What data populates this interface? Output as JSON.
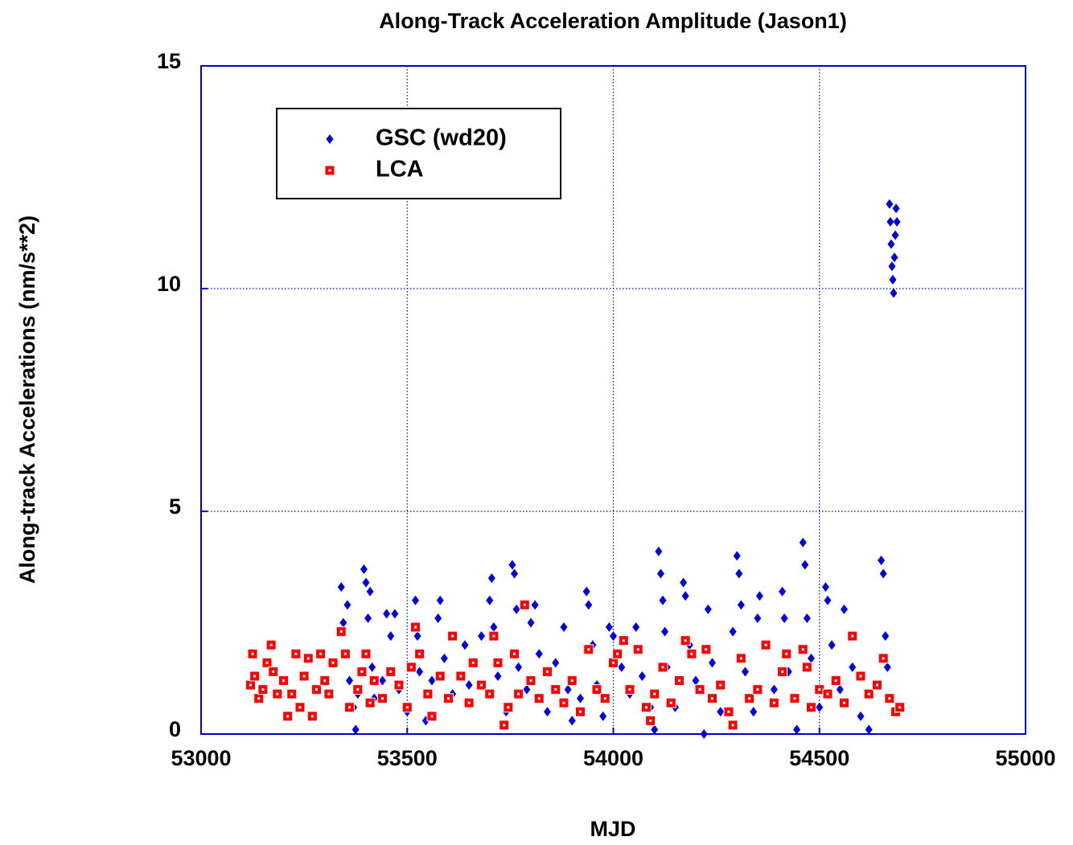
{
  "chart_data": {
    "type": "scatter",
    "title": "Along-Track Acceleration Amplitude (Jason1)",
    "x_label": "MJD",
    "y_label": "Along-track Accelerations (nm/s**2)",
    "xlim": [
      53000,
      55000
    ],
    "xticks": [
      53000,
      53500,
      54000,
      54500,
      55000
    ],
    "ylim": [
      0,
      15
    ],
    "yticks": [
      0,
      5,
      10,
      15
    ],
    "grid": true,
    "legend": "upper left",
    "series": [
      {
        "name": "GSC (wd20)",
        "color": "#0000dd",
        "marker": "diamond",
        "x": [
          53340,
          53345,
          53350,
          53355,
          53360,
          53370,
          53375,
          53380,
          53395,
          53400,
          53405,
          53410,
          53415,
          53420,
          53440,
          53450,
          53460,
          53470,
          53480,
          53500,
          53520,
          53525,
          53530,
          53545,
          53560,
          53575,
          53580,
          53590,
          53610,
          53640,
          53650,
          53680,
          53700,
          53705,
          53710,
          53720,
          53740,
          53755,
          53760,
          53765,
          53770,
          53790,
          53800,
          53810,
          53820,
          53840,
          53860,
          53880,
          53890,
          53900,
          53920,
          53935,
          53940,
          53950,
          53960,
          53975,
          53990,
          54000,
          54020,
          54040,
          54055,
          54070,
          54090,
          54100,
          54110,
          54115,
          54120,
          54125,
          54130,
          54150,
          54170,
          54175,
          54185,
          54200,
          54220,
          54230,
          54240,
          54260,
          54290,
          54300,
          54305,
          54310,
          54320,
          54340,
          54350,
          54355,
          54370,
          54390,
          54410,
          54415,
          54425,
          54445,
          54460,
          54465,
          54470,
          54480,
          54500,
          54515,
          54520,
          54530,
          54550,
          54560,
          54580,
          54600,
          54620,
          54650,
          54655,
          54660,
          54665,
          54670,
          54672,
          54674,
          54676,
          54678,
          54680,
          54682,
          54684,
          54686,
          54688
        ],
        "values": [
          3.3,
          2.5,
          1.8,
          2.9,
          1.2,
          0.6,
          0.1,
          0.9,
          3.7,
          3.4,
          2.6,
          3.2,
          1.5,
          0.8,
          1.2,
          2.7,
          2.2,
          2.7,
          1.0,
          0.5,
          3.0,
          2.2,
          1.4,
          0.3,
          1.2,
          2.6,
          3.0,
          1.7,
          0.9,
          2.0,
          1.1,
          2.2,
          3.0,
          3.5,
          2.4,
          1.3,
          0.5,
          3.8,
          3.6,
          2.8,
          1.5,
          1.0,
          2.5,
          2.9,
          1.8,
          0.5,
          1.6,
          2.4,
          1.0,
          0.3,
          0.8,
          3.2,
          2.9,
          2.0,
          1.1,
          0.4,
          2.4,
          2.2,
          1.5,
          0.9,
          2.4,
          1.3,
          0.6,
          0.1,
          4.1,
          3.6,
          3.0,
          2.3,
          1.5,
          0.6,
          3.4,
          3.1,
          2.0,
          1.2,
          0.0,
          2.8,
          1.6,
          0.5,
          2.3,
          4.0,
          3.6,
          2.9,
          1.4,
          0.5,
          2.6,
          3.1,
          2.0,
          1.0,
          3.2,
          2.6,
          1.4,
          0.1,
          4.3,
          3.8,
          2.6,
          1.7,
          0.6,
          3.3,
          3.0,
          2.0,
          1.0,
          2.8,
          1.5,
          0.4,
          0.1,
          3.9,
          3.6,
          2.2,
          1.5,
          11.9,
          11.5,
          11.0,
          10.5,
          10.2,
          9.9,
          10.7,
          11.2,
          11.8,
          11.5
        ]
      },
      {
        "name": "LCA",
        "color": "#ff0000",
        "marker": "square",
        "x": [
          53120,
          53125,
          53130,
          53140,
          53150,
          53160,
          53170,
          53175,
          53185,
          53200,
          53210,
          53220,
          53230,
          53240,
          53250,
          53260,
          53270,
          53280,
          53290,
          53300,
          53310,
          53320,
          53340,
          53350,
          53360,
          53380,
          53390,
          53400,
          53410,
          53420,
          53440,
          53460,
          53480,
          53500,
          53510,
          53520,
          53530,
          53550,
          53560,
          53580,
          53600,
          53610,
          53630,
          53650,
          53660,
          53680,
          53700,
          53710,
          53720,
          53735,
          53745,
          53760,
          53770,
          53785,
          53800,
          53820,
          53840,
          53860,
          53880,
          53900,
          53920,
          53940,
          53960,
          53980,
          54000,
          54010,
          54025,
          54040,
          54060,
          54080,
          54090,
          54100,
          54120,
          54140,
          54160,
          54175,
          54190,
          54210,
          54225,
          54240,
          54260,
          54280,
          54290,
          54310,
          54330,
          54350,
          54370,
          54390,
          54410,
          54420,
          54440,
          54460,
          54470,
          54480,
          54500,
          54520,
          54540,
          54560,
          54580,
          54600,
          54620,
          54640,
          54655,
          54670,
          54685,
          54695
        ],
        "values": [
          1.1,
          1.8,
          1.3,
          0.8,
          1.0,
          1.6,
          2.0,
          1.4,
          0.9,
          1.2,
          0.4,
          0.9,
          1.8,
          0.6,
          1.3,
          1.7,
          0.4,
          1.0,
          1.8,
          1.2,
          0.9,
          1.6,
          2.3,
          1.8,
          0.6,
          1.0,
          1.4,
          1.8,
          0.7,
          1.2,
          0.8,
          1.4,
          1.1,
          0.6,
          1.5,
          2.4,
          1.8,
          0.9,
          0.4,
          1.3,
          0.8,
          2.2,
          1.3,
          0.7,
          1.6,
          1.1,
          0.9,
          2.2,
          1.6,
          0.2,
          0.6,
          1.8,
          0.9,
          2.9,
          1.2,
          0.8,
          1.4,
          1.0,
          0.7,
          1.2,
          0.5,
          1.9,
          1.0,
          0.8,
          1.6,
          1.8,
          2.1,
          1.0,
          1.9,
          0.6,
          0.3,
          0.9,
          1.5,
          0.7,
          1.2,
          2.1,
          1.8,
          1.0,
          1.9,
          0.8,
          1.1,
          0.5,
          0.2,
          1.7,
          0.8,
          1.0,
          2.0,
          0.7,
          1.4,
          1.8,
          0.8,
          1.9,
          1.5,
          0.6,
          1.0,
          0.9,
          1.2,
          0.7,
          2.2,
          1.3,
          0.9,
          1.1,
          1.7,
          0.8,
          0.5,
          0.6
        ]
      }
    ]
  }
}
